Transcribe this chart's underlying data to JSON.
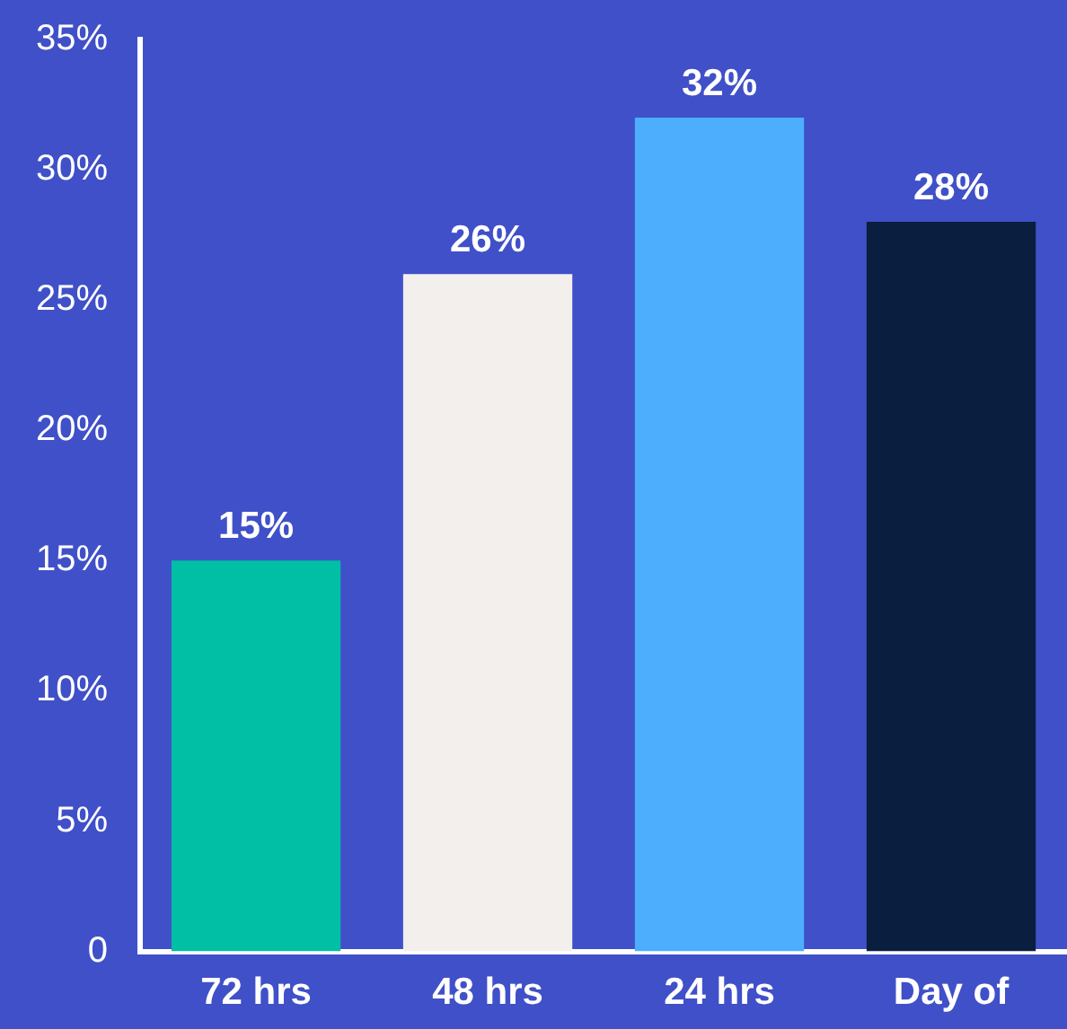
{
  "chart_data": {
    "type": "bar",
    "categories": [
      "72 hrs",
      "48 hrs",
      "24 hrs",
      "Day of"
    ],
    "values": [
      15,
      26,
      32,
      28
    ],
    "colors": [
      "#00bfa5",
      "#f3efec",
      "#4daefe",
      "#0a1f3f"
    ],
    "value_labels": [
      "15%",
      "26%",
      "32%",
      "28%"
    ],
    "ylim": [
      0,
      35
    ],
    "yticks": [
      0,
      {
        "value": 5,
        "label": "5%"
      },
      {
        "value": 10,
        "label": "10%"
      },
      {
        "value": 15,
        "label": "15%"
      },
      {
        "value": 20,
        "label": "20%"
      },
      {
        "value": 25,
        "label": "25%"
      },
      {
        "value": 30,
        "label": "30%"
      },
      {
        "value": 35,
        "label": "35%"
      }
    ],
    "grid": false,
    "legend": false
  }
}
